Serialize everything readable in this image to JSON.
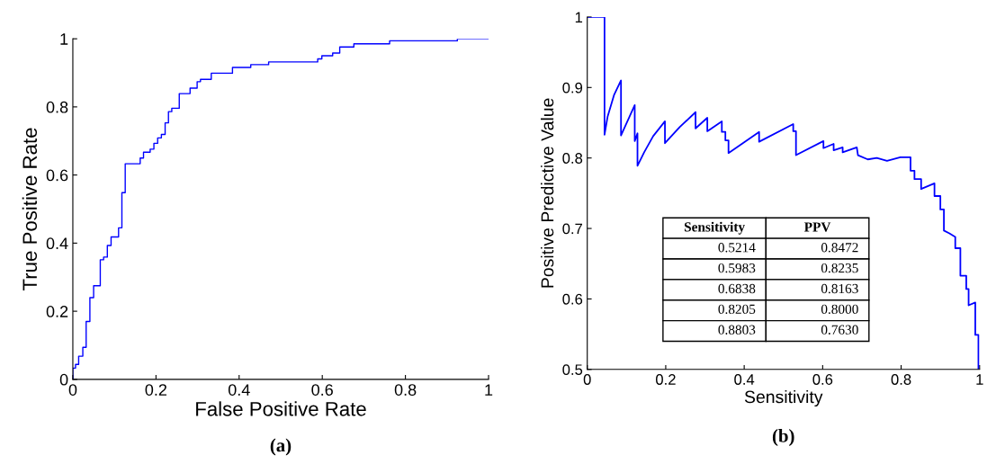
{
  "chart_data": [
    {
      "type": "step",
      "xlabel": "False Positive Rate",
      "ylabel": "True Positive Rate",
      "annotations": [
        "(a)"
      ],
      "x": [
        0,
        0,
        0.0065,
        0.014,
        0.024,
        0.032,
        0.041,
        0.05,
        0.066,
        0.074,
        0.083,
        0.092,
        0.11,
        0.118,
        0.126,
        0.162,
        0.17,
        0.186,
        0.195,
        0.204,
        0.213,
        0.222,
        0.23,
        0.238,
        0.256,
        0.282,
        0.299,
        0.307,
        0.333,
        0.384,
        0.428,
        0.471,
        0.589,
        0.599,
        0.625,
        0.642,
        0.676,
        0.762,
        0.925,
        1.0
      ],
      "series": [
        {
          "color": "#0000ff",
          "values": [
            0,
            0.033,
            0.044,
            0.068,
            0.094,
            0.17,
            0.24,
            0.275,
            0.351,
            0.359,
            0.393,
            0.418,
            0.445,
            0.548,
            0.633,
            0.65,
            0.667,
            0.676,
            0.693,
            0.709,
            0.719,
            0.753,
            0.786,
            0.796,
            0.839,
            0.855,
            0.874,
            0.881,
            0.899,
            0.916,
            0.924,
            0.932,
            0.941,
            0.95,
            0.958,
            0.976,
            0.985,
            0.994,
            1.0,
            1.0
          ]
        }
      ],
      "xlim": [
        0,
        1
      ],
      "ylim": [
        0,
        1
      ],
      "xticks": [
        0,
        0.2,
        0.4,
        0.6,
        0.8,
        1
      ],
      "yticks": [
        0,
        0.2,
        0.4,
        0.6,
        0.8,
        1
      ],
      "grid": false
    },
    {
      "type": "line",
      "xlabel": "Sensitivity",
      "ylabel": "Positive Predictive Value",
      "annotations": [
        "(b)",
        "Sensitivity",
        "PPV",
        "0.5214",
        "0.8472",
        "0.5983",
        "0.8235",
        "0.6838",
        "0.8163",
        "0.8205",
        "0.8000",
        "0.8803",
        "0.7630"
      ],
      "x": [
        0,
        0.044,
        0.044,
        0.052,
        0.068,
        0.086,
        0.086,
        0.121,
        0.121,
        0.128,
        0.128,
        0.145,
        0.168,
        0.198,
        0.198,
        0.236,
        0.276,
        0.276,
        0.306,
        0.306,
        0.343,
        0.343,
        0.352,
        0.352,
        0.36,
        0.36,
        0.438,
        0.438,
        0.525,
        0.525,
        0.532,
        0.532,
        0.602,
        0.602,
        0.628,
        0.628,
        0.651,
        0.651,
        0.687,
        0.69,
        0.715,
        0.738,
        0.764,
        0.798,
        0.824,
        0.824,
        0.834,
        0.834,
        0.851,
        0.851,
        0.885,
        0.885,
        0.9,
        0.9,
        0.909,
        0.909,
        0.923,
        0.938,
        0.938,
        0.951,
        0.951,
        0.966,
        0.966,
        0.972,
        0.972,
        0.989,
        0.989,
        0.997,
        0.997,
        1.0
      ],
      "series": [
        {
          "color": "#0000ff",
          "values": [
            1,
            1,
            0.833,
            0.859,
            0.889,
            0.91,
            0.832,
            0.875,
            0.824,
            0.835,
            0.789,
            0.808,
            0.831,
            0.852,
            0.821,
            0.844,
            0.865,
            0.842,
            0.857,
            0.838,
            0.852,
            0.837,
            0.837,
            0.825,
            0.825,
            0.807,
            0.837,
            0.823,
            0.848,
            0.838,
            0.838,
            0.804,
            0.824,
            0.814,
            0.82,
            0.811,
            0.815,
            0.808,
            0.815,
            0.804,
            0.798,
            0.8,
            0.796,
            0.801,
            0.801,
            0.782,
            0.782,
            0.77,
            0.77,
            0.756,
            0.764,
            0.746,
            0.746,
            0.727,
            0.727,
            0.697,
            0.693,
            0.688,
            0.672,
            0.672,
            0.633,
            0.633,
            0.614,
            0.614,
            0.591,
            0.595,
            0.549,
            0.549,
            0.5,
            0.5
          ]
        }
      ],
      "xlim": [
        0,
        1
      ],
      "ylim": [
        0.5,
        1
      ],
      "xticks": [
        0,
        0.2,
        0.4,
        0.6,
        0.8,
        1
      ],
      "yticks": [
        0.5,
        0.6,
        0.7,
        0.8,
        0.9,
        1
      ],
      "grid": false
    }
  ]
}
